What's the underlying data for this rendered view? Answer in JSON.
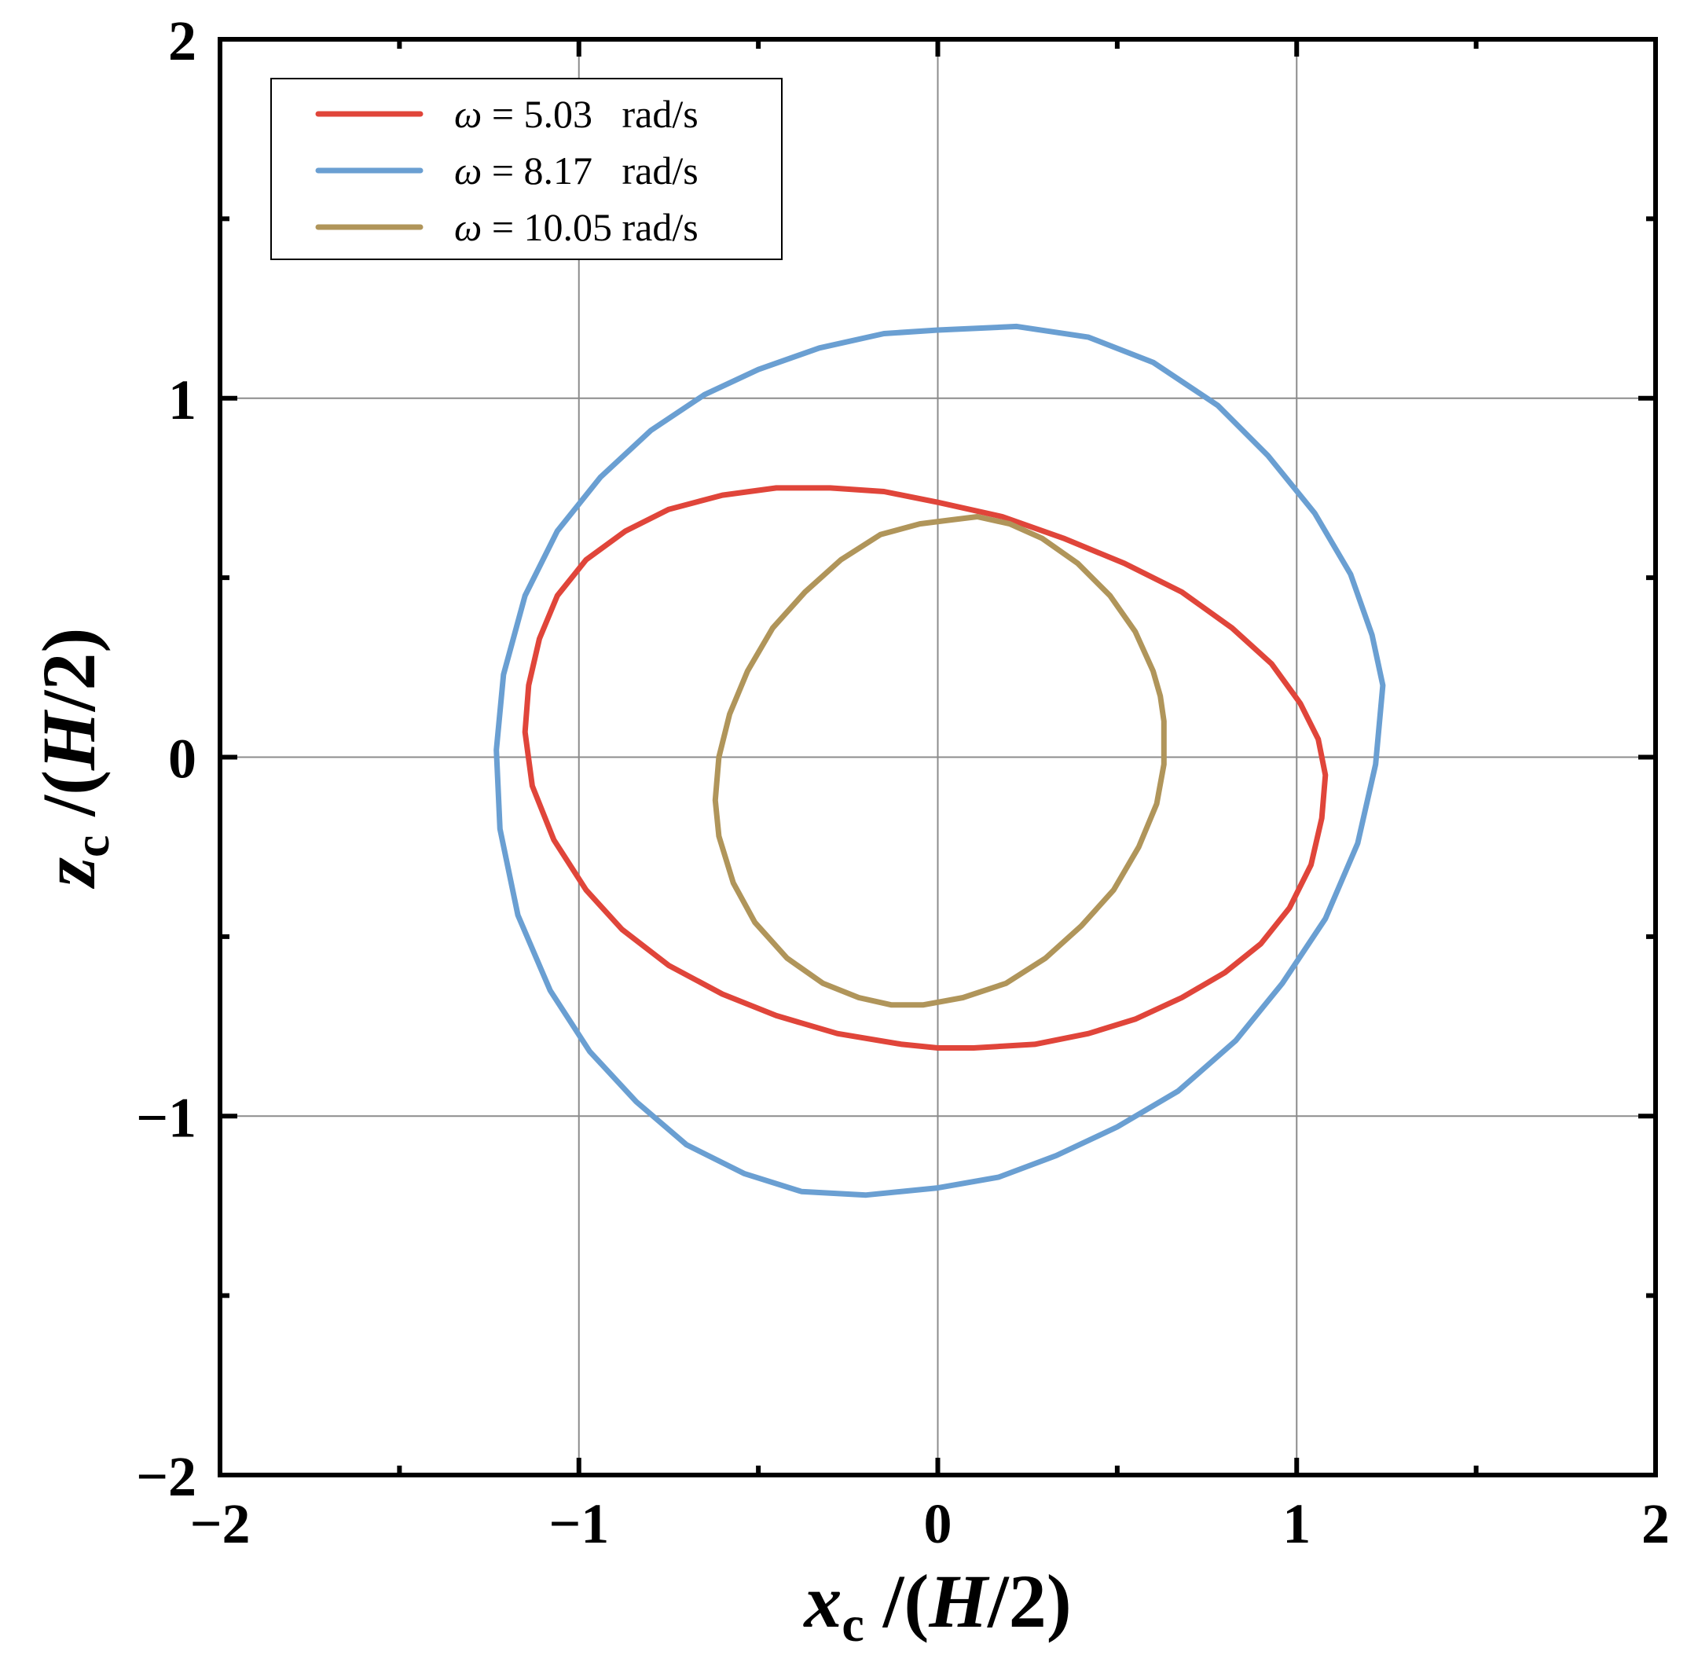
{
  "chart_data": {
    "type": "line",
    "xlabel": {
      "var": "x",
      "sub": "c",
      "unit_pre": " /(",
      "unit_var": "H",
      "unit_post": "/2)"
    },
    "ylabel": {
      "var": "z",
      "sub": "c",
      "unit_pre": " /(",
      "unit_var": "H",
      "unit_post": "/2)"
    },
    "xlim": [
      -2,
      2
    ],
    "ylim": [
      -2,
      2
    ],
    "xticks": [
      -2,
      -1,
      0,
      1,
      2
    ],
    "yticks": [
      -2,
      -1,
      0,
      1,
      2
    ],
    "xtick_labels": [
      "−2",
      "−1",
      "0",
      "1",
      "2"
    ],
    "ytick_labels": [
      "−2",
      "−1",
      "0",
      "1",
      "2"
    ],
    "grid": true,
    "legend_position": "top-left",
    "series": [
      {
        "name": "ω = 5.03   rad/s",
        "legend_symbol": "ω",
        "legend_rest": " = 5.03   rad/s",
        "color": "#e0453a",
        "x": [
          1.08,
          1.07,
          1.04,
          0.98,
          0.9,
          0.8,
          0.68,
          0.55,
          0.42,
          0.27,
          0.1,
          0.0,
          -0.1,
          -0.28,
          -0.45,
          -0.6,
          -0.75,
          -0.88,
          -0.98,
          -1.07,
          -1.13,
          -1.15,
          -1.14,
          -1.11,
          -1.06,
          -0.98,
          -0.87,
          -0.75,
          -0.6,
          -0.45,
          -0.3,
          -0.15,
          0.0,
          0.18,
          0.35,
          0.52,
          0.68,
          0.82,
          0.93,
          1.01,
          1.06,
          1.08
        ],
        "y": [
          -0.05,
          -0.17,
          -0.3,
          -0.42,
          -0.52,
          -0.6,
          -0.67,
          -0.73,
          -0.77,
          -0.8,
          -0.81,
          -0.81,
          -0.8,
          -0.77,
          -0.72,
          -0.66,
          -0.58,
          -0.48,
          -0.37,
          -0.23,
          -0.08,
          0.07,
          0.2,
          0.33,
          0.45,
          0.55,
          0.63,
          0.69,
          0.73,
          0.75,
          0.75,
          0.74,
          0.71,
          0.67,
          0.61,
          0.54,
          0.46,
          0.36,
          0.26,
          0.15,
          0.05,
          -0.05
        ]
      },
      {
        "name": "ω = 8.17   rad/s",
        "legend_symbol": "ω",
        "legend_rest": " = 8.17   rad/s",
        "color": "#6a9fd2",
        "x": [
          1.24,
          1.22,
          1.17,
          1.08,
          0.96,
          0.83,
          0.67,
          0.5,
          0.33,
          0.17,
          0.0,
          -0.2,
          -0.38,
          -0.54,
          -0.7,
          -0.84,
          -0.97,
          -1.08,
          -1.17,
          -1.22,
          -1.23,
          -1.21,
          -1.15,
          -1.06,
          -0.94,
          -0.8,
          -0.65,
          -0.5,
          -0.33,
          -0.15,
          0.0,
          0.22,
          0.42,
          0.6,
          0.78,
          0.92,
          1.05,
          1.15,
          1.21,
          1.24
        ],
        "y": [
          0.2,
          -0.02,
          -0.24,
          -0.45,
          -0.63,
          -0.79,
          -0.93,
          -1.03,
          -1.11,
          -1.17,
          -1.2,
          -1.22,
          -1.21,
          -1.16,
          -1.08,
          -0.96,
          -0.82,
          -0.65,
          -0.44,
          -0.2,
          0.02,
          0.23,
          0.45,
          0.63,
          0.78,
          0.91,
          1.01,
          1.08,
          1.14,
          1.18,
          1.19,
          1.2,
          1.17,
          1.1,
          0.98,
          0.84,
          0.68,
          0.51,
          0.34,
          0.2
        ]
      },
      {
        "name": "ω = 10.05 rad/s",
        "legend_symbol": "ω",
        "legend_rest": " = 10.05 rad/s",
        "color": "#b0955a",
        "x": [
          0.63,
          0.63,
          0.61,
          0.56,
          0.49,
          0.4,
          0.3,
          0.19,
          0.07,
          -0.04,
          -0.13,
          -0.22,
          -0.32,
          -0.42,
          -0.51,
          -0.57,
          -0.61,
          -0.62,
          -0.61,
          -0.58,
          -0.53,
          -0.46,
          -0.37,
          -0.27,
          -0.16,
          -0.05,
          0.03,
          0.11,
          0.2,
          0.29,
          0.39,
          0.48,
          0.55,
          0.6,
          0.62,
          0.63
        ],
        "y": [
          0.1,
          -0.02,
          -0.13,
          -0.25,
          -0.37,
          -0.47,
          -0.56,
          -0.63,
          -0.67,
          -0.69,
          -0.69,
          -0.67,
          -0.63,
          -0.56,
          -0.46,
          -0.35,
          -0.22,
          -0.12,
          0.0,
          0.12,
          0.24,
          0.36,
          0.46,
          0.55,
          0.62,
          0.65,
          0.66,
          0.67,
          0.65,
          0.61,
          0.54,
          0.45,
          0.35,
          0.24,
          0.17,
          0.1
        ]
      }
    ]
  }
}
